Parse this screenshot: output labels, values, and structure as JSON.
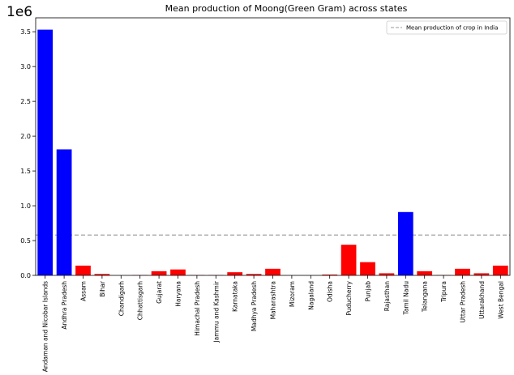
{
  "chart_data": {
    "type": "bar",
    "title": "Mean production of Moong(Green Gram) across states",
    "xlabel": "",
    "ylabel": "",
    "scale_label": "1e6",
    "categories": [
      "Andaman and Nicobar Islands",
      "Andhra Pradesh",
      "Assam",
      "Bihar",
      "Chandigarh",
      "Chhattisgarh",
      "Gujarat",
      "Haryana",
      "Himachal Pradesh",
      "Jammu and Kashmir",
      "Karnataka",
      "Madhya Pradesh",
      "Maharashtra",
      "Mizoram",
      "Nagaland",
      "Odisha",
      "Puducherry",
      "Punjab",
      "Rajasthan",
      "Tamil Nadu",
      "Telangana",
      "Tripura",
      "Uttar Pradesh",
      "Uttarakhand",
      "West Bengal"
    ],
    "values": [
      3.53,
      1.81,
      0.14,
      0.02,
      0.0,
      0.005,
      0.06,
      0.085,
      0.005,
      0.005,
      0.045,
      0.02,
      0.095,
      0.0,
      0.0,
      0.012,
      0.44,
      0.19,
      0.03,
      0.91,
      0.06,
      0.005,
      0.095,
      0.03,
      0.14
    ],
    "above_mean_color": "#0000ff",
    "below_mean_color": "#ff0000",
    "mean_line": {
      "value": 0.58,
      "label": "Mean production of crop in India",
      "color": "#999999",
      "style": "dashed"
    },
    "ylim": [
      0,
      3.7
    ],
    "yticks": [
      0.0,
      0.5,
      1.0,
      1.5,
      2.0,
      2.5,
      3.0,
      3.5
    ],
    "ytick_labels": [
      "0.0",
      "0.5",
      "1.0",
      "1.5",
      "2.0",
      "2.5",
      "3.0",
      "3.5"
    ],
    "legend_position": "top-right",
    "grid": false
  }
}
